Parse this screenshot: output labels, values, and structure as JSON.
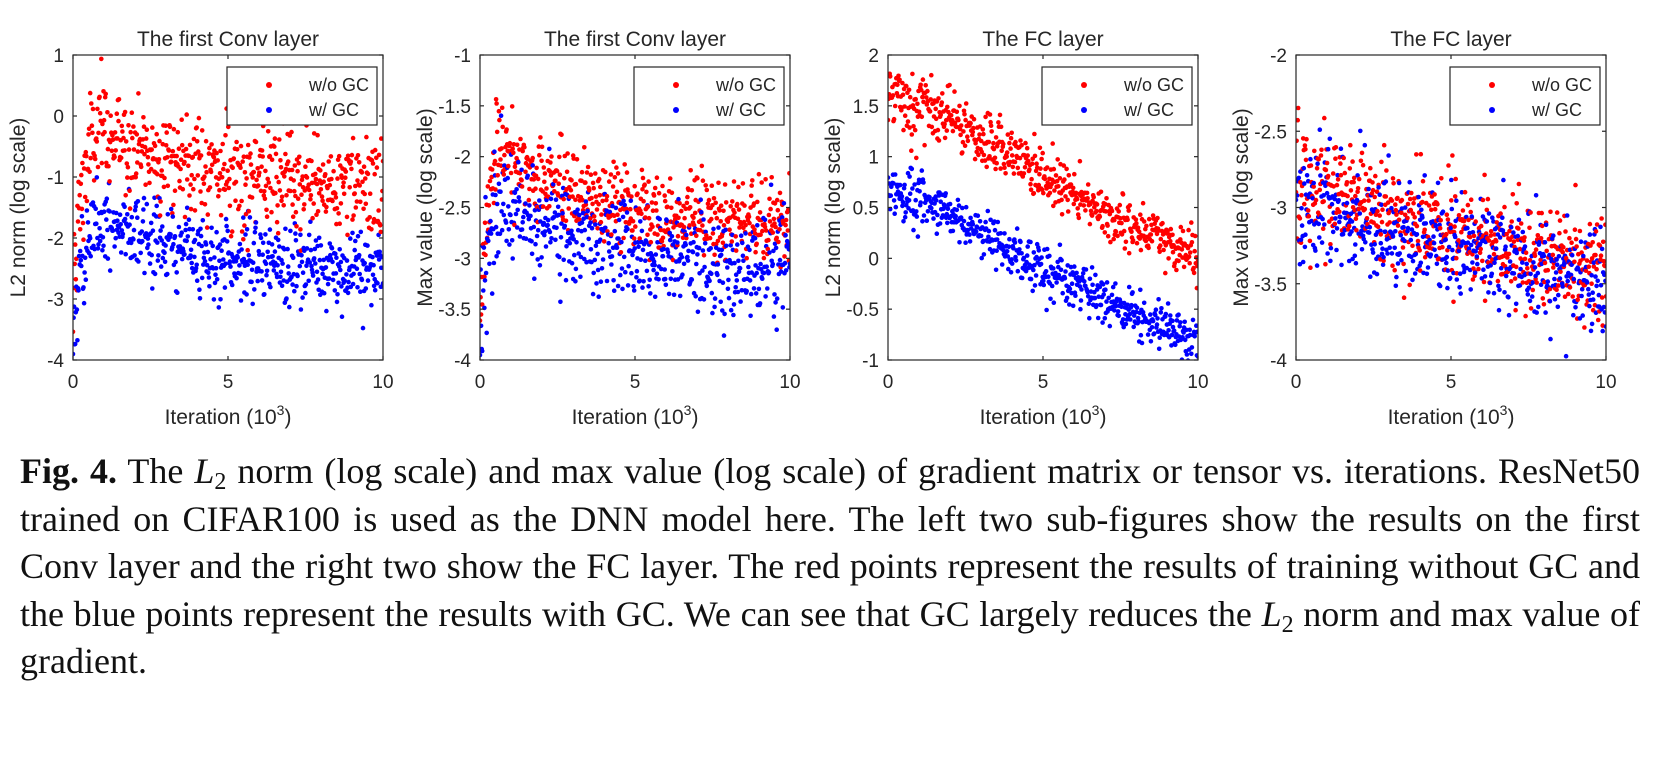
{
  "chart_data": [
    {
      "type": "scatter",
      "title": "The first Conv layer",
      "xlabel": "Iteration (10^3)",
      "ylabel": "L2 norm (log scale)",
      "xlim": [
        0,
        10
      ],
      "ylim": [
        -4,
        1
      ],
      "xticks": [
        "0",
        "5",
        "10"
      ],
      "yticks": [
        "-4",
        "-3",
        "-2",
        "-1",
        "0",
        "1"
      ],
      "legend_position": "top-right",
      "grid": false,
      "series": [
        {
          "name": "w/o GC",
          "color": "#ff0000",
          "trend": [
            [
              0.0,
              -3.2
            ],
            [
              0.2,
              -1.5
            ],
            [
              0.6,
              -0.4
            ],
            [
              1.0,
              -0.3
            ],
            [
              2.0,
              -0.5
            ],
            [
              4.0,
              -0.8
            ],
            [
              6.0,
              -1.05
            ],
            [
              8.0,
              -1.15
            ],
            [
              10.0,
              -1.2
            ]
          ],
          "spread": 0.38
        },
        {
          "name": "w/ GC",
          "color": "#0000ff",
          "trend": [
            [
              0.0,
              -3.8
            ],
            [
              0.2,
              -2.6
            ],
            [
              0.6,
              -1.9
            ],
            [
              1.0,
              -1.6
            ],
            [
              2.0,
              -1.9
            ],
            [
              4.0,
              -2.25
            ],
            [
              6.0,
              -2.4
            ],
            [
              8.0,
              -2.5
            ],
            [
              10.0,
              -2.55
            ]
          ],
          "spread": 0.32
        }
      ]
    },
    {
      "type": "scatter",
      "title": "The first Conv layer",
      "xlabel": "Iteration (10^3)",
      "ylabel": "Max value (log scale)",
      "xlim": [
        0,
        10
      ],
      "ylim": [
        -4,
        -1
      ],
      "xticks": [
        "0",
        "5",
        "10"
      ],
      "yticks": [
        "-4",
        "-3.5",
        "-3",
        "-2.5",
        "-2",
        "-1.5",
        "-1"
      ],
      "legend_position": "top-right",
      "grid": false,
      "series": [
        {
          "name": "w/o GC",
          "color": "#ff0000",
          "trend": [
            [
              0.0,
              -3.5
            ],
            [
              0.2,
              -2.6
            ],
            [
              0.6,
              -1.8
            ],
            [
              1.0,
              -2.0
            ],
            [
              2.0,
              -2.25
            ],
            [
              4.0,
              -2.45
            ],
            [
              6.0,
              -2.55
            ],
            [
              8.0,
              -2.6
            ],
            [
              10.0,
              -2.65
            ]
          ],
          "spread": 0.2
        },
        {
          "name": "w/ GC",
          "color": "#0000ff",
          "trend": [
            [
              0.0,
              -3.9
            ],
            [
              0.2,
              -3.0
            ],
            [
              0.6,
              -2.3
            ],
            [
              1.0,
              -2.5
            ],
            [
              2.0,
              -2.7
            ],
            [
              4.0,
              -2.9
            ],
            [
              6.0,
              -3.0
            ],
            [
              8.0,
              -3.05
            ],
            [
              10.0,
              -3.1
            ]
          ],
          "spread": 0.25
        }
      ]
    },
    {
      "type": "scatter",
      "title": "The FC layer",
      "xlabel": "Iteration (10^3)",
      "ylabel": "L2 norm (log scale)",
      "xlim": [
        0,
        10
      ],
      "ylim": [
        -1,
        2
      ],
      "xticks": [
        "0",
        "5",
        "10"
      ],
      "yticks": [
        "-1",
        "-0.5",
        "0",
        "0.5",
        "1",
        "1.5",
        "2"
      ],
      "legend_position": "top-right",
      "grid": false,
      "series": [
        {
          "name": "w/o GC",
          "color": "#ff0000",
          "trend": [
            [
              0.0,
              1.6
            ],
            [
              2.0,
              1.35
            ],
            [
              4.0,
              1.0
            ],
            [
              6.0,
              0.6
            ],
            [
              8.0,
              0.3
            ],
            [
              10.0,
              0.0
            ]
          ],
          "spread": 0.13
        },
        {
          "name": "w/ GC",
          "color": "#0000ff",
          "trend": [
            [
              0.0,
              0.65
            ],
            [
              2.0,
              0.45
            ],
            [
              4.0,
              0.05
            ],
            [
              6.0,
              -0.25
            ],
            [
              8.0,
              -0.55
            ],
            [
              10.0,
              -0.8
            ]
          ],
          "spread": 0.12
        }
      ]
    },
    {
      "type": "scatter",
      "title": "The FC layer",
      "xlabel": "Iteration (10^3)",
      "ylabel": "Max value (log scale)",
      "xlim": [
        0,
        10
      ],
      "ylim": [
        -4,
        -2
      ],
      "xticks": [
        "0",
        "5",
        "10"
      ],
      "yticks": [
        "-4",
        "-3.5",
        "-3",
        "-2.5",
        "-2"
      ],
      "legend_position": "top-right",
      "grid": false,
      "series": [
        {
          "name": "w/o GC",
          "color": "#ff0000",
          "trend": [
            [
              0.0,
              -2.85
            ],
            [
              2.0,
              -2.95
            ],
            [
              4.0,
              -3.1
            ],
            [
              6.0,
              -3.2
            ],
            [
              8.0,
              -3.3
            ],
            [
              10.0,
              -3.4
            ]
          ],
          "spread": 0.17
        },
        {
          "name": "w/ GC",
          "color": "#0000ff",
          "trend": [
            [
              0.0,
              -2.95
            ],
            [
              2.0,
              -3.1
            ],
            [
              4.0,
              -3.2
            ],
            [
              6.0,
              -3.3
            ],
            [
              8.0,
              -3.4
            ],
            [
              10.0,
              -3.5
            ]
          ],
          "spread": 0.17
        }
      ]
    }
  ],
  "caption": {
    "label": "Fig. 4.",
    "text_1": " The ",
    "math_L": "L",
    "math_sub": "2",
    "text_2": " norm (log scale) and max value (log scale) of gradient matrix or tensor vs. iterations. ResNet50 trained on CIFAR100 is used as the DNN model here. The left two sub-figures show the results on the first Conv layer and the right two show the FC layer. The red points represent the results of training without GC and the blue points represent the results with GC. We can see that GC largely reduces the ",
    "math_L_2": "L",
    "math_sub_2": "2",
    "text_3": " norm and max value of gradient."
  }
}
